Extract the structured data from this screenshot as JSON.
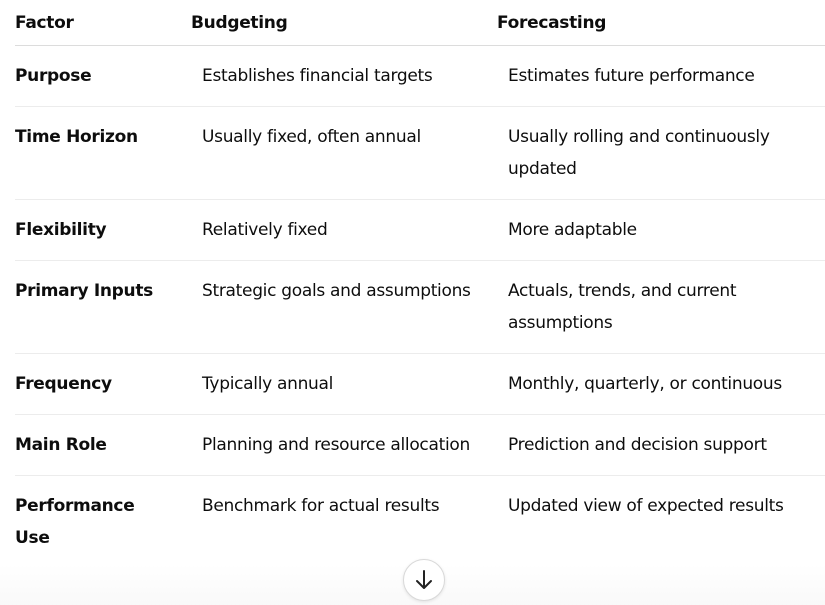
{
  "table": {
    "header": [
      "Factor",
      "Budgeting",
      "Forecasting"
    ],
    "rows": [
      [
        "Purpose",
        "Establishes financial targets",
        "Estimates future performance"
      ],
      [
        "Time Horizon",
        "Usually fixed, often annual",
        "Usually rolling and continuously updated"
      ],
      [
        "Flexibility",
        "Relatively fixed",
        "More adaptable"
      ],
      [
        "Primary Inputs",
        "Strategic goals and assumptions",
        "Actuals, trends, and current assumptions"
      ],
      [
        "Frequency",
        "Typically annual",
        "Monthly, quarterly, or continuous"
      ],
      [
        "Main Role",
        "Planning and resource allocation",
        "Prediction and decision support"
      ],
      [
        "Performance Use",
        "Benchmark for actual results",
        "Updated view of expected results"
      ]
    ]
  }
}
